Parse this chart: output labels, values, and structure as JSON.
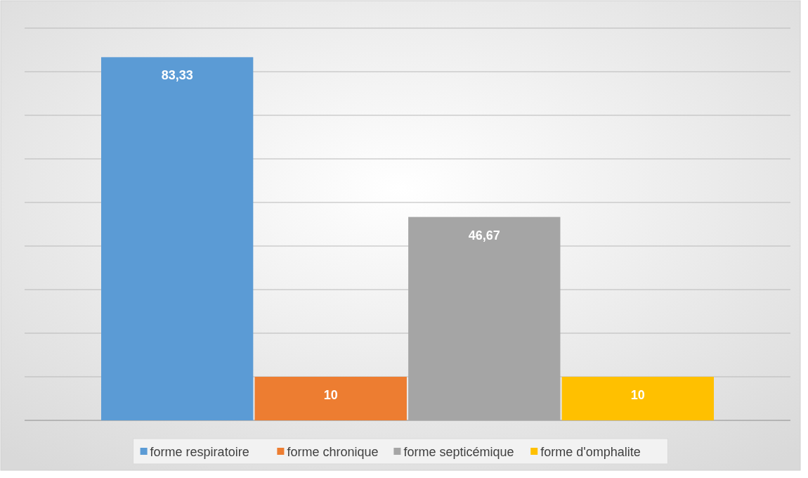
{
  "chart_data": {
    "type": "bar",
    "categories": [
      null
    ],
    "series": [
      {
        "name": "forme respiratoire",
        "color": "#5b9bd5",
        "values": [
          83.33
        ],
        "value_labels": [
          "83,33"
        ]
      },
      {
        "name": "forme chronique",
        "color": "#ed7d31",
        "values": [
          10
        ],
        "value_labels": [
          "10"
        ]
      },
      {
        "name": "forme septicémique",
        "color": "#a5a5a5",
        "values": [
          46.67
        ],
        "value_labels": [
          "46,67"
        ]
      },
      {
        "name": "forme d'omphalite",
        "color": "#ffc000",
        "values": [
          10
        ],
        "value_labels": [
          "10"
        ]
      }
    ],
    "ylim": [
      0,
      90
    ],
    "yticks": [
      {
        "value": 0,
        "label": null
      },
      {
        "value": 10,
        "label": null
      },
      {
        "value": 20,
        "label": null
      },
      {
        "value": 30,
        "label": null
      },
      {
        "value": 40,
        "label": null
      },
      {
        "value": 50,
        "label": null
      },
      {
        "value": 60,
        "label": null
      },
      {
        "value": 70,
        "label": null
      },
      {
        "value": 80,
        "label": null
      },
      {
        "value": 90,
        "label": null
      }
    ],
    "tick_labels": false,
    "grid": "y",
    "legend": "bottom"
  }
}
